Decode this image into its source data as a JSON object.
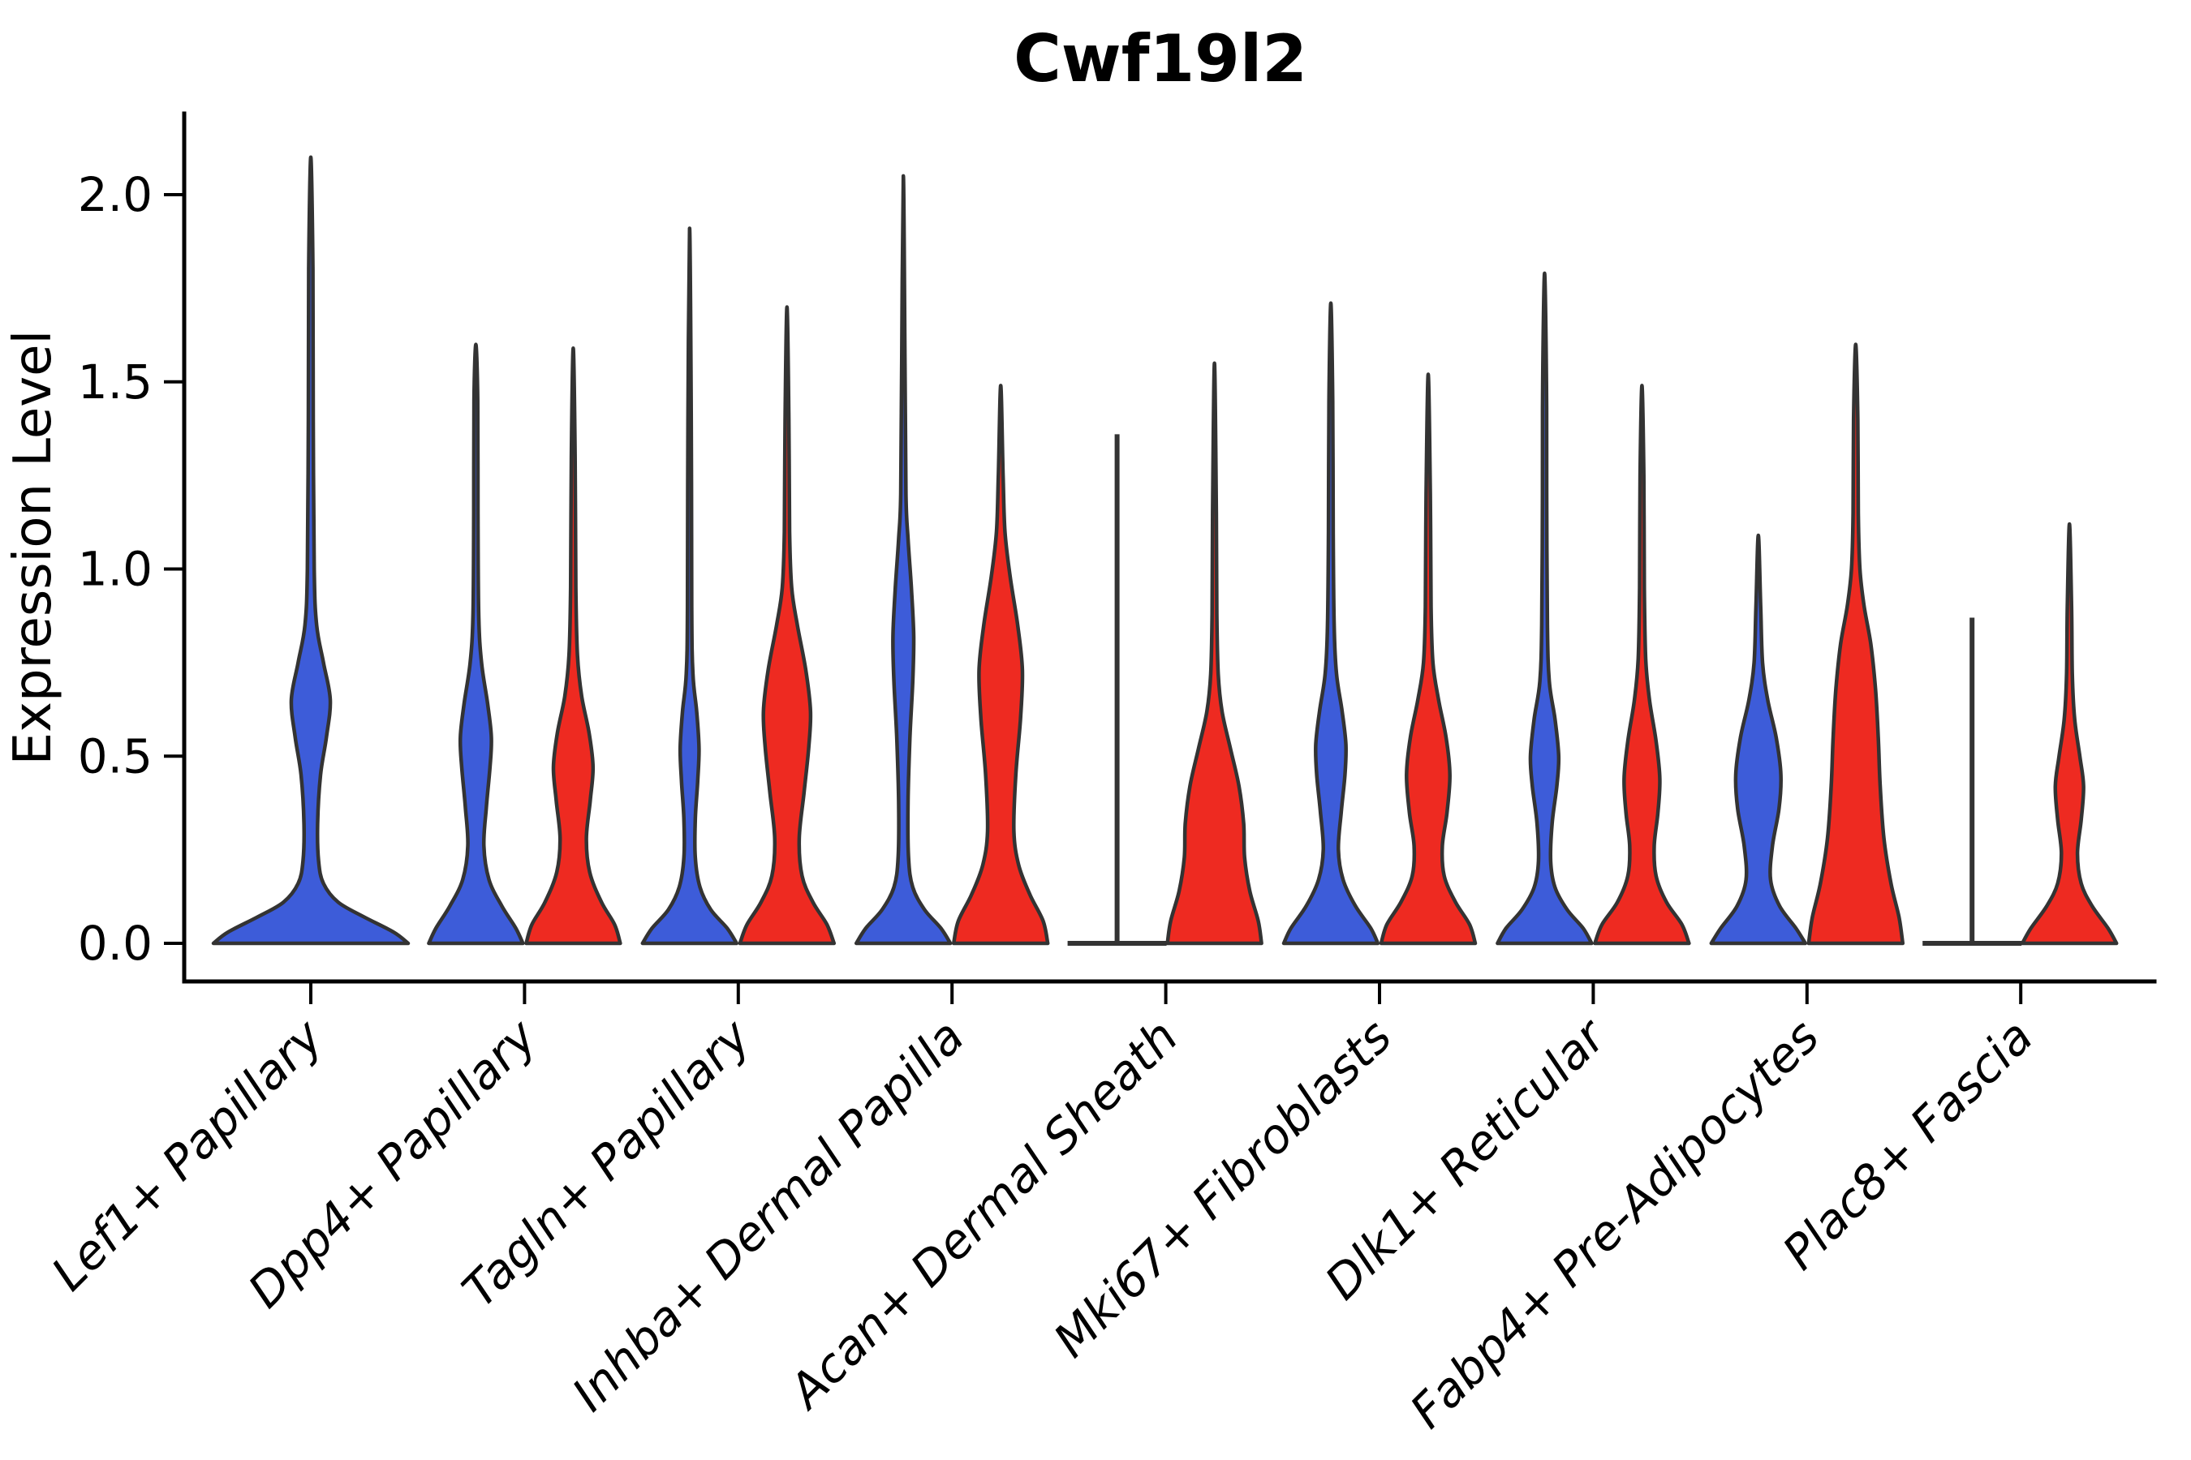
{
  "title": "Cwf19l2",
  "ylabel": "Expression Level",
  "chart_data": {
    "type": "violin",
    "title": "Cwf19l2",
    "xlabel": "",
    "ylabel": "Expression Level",
    "ylim": [
      0,
      2.2
    ],
    "yticks": [
      0.0,
      0.5,
      1.0,
      1.5,
      2.0
    ],
    "ytick_labels": [
      "0.0",
      "0.5",
      "1.0",
      "1.5",
      "2.0"
    ],
    "grid": false,
    "legend_position": "none",
    "colors": {
      "blue": "#3D5CD9",
      "red": "#EE2A21",
      "outline": "#333333"
    },
    "categories": [
      "Lef1+ Papillary",
      "Dpp4+ Papillary",
      "Tagln+ Papillary",
      "Inhba+ Dermal Papilla",
      "Acan+ Dermal Sheath",
      "Mki67+ Fibroblasts",
      "Dlk1+ Reticular",
      "Fabp4+ Pre-Adipocytes",
      "Plac8+ Fascia"
    ],
    "violins": [
      {
        "category_index": 0,
        "group": "blue",
        "span": "full",
        "style": "kde",
        "max": 2.1,
        "profile": [
          [
            0,
            1
          ],
          [
            0.03,
            0.85
          ],
          [
            0.07,
            0.55
          ],
          [
            0.11,
            0.28
          ],
          [
            0.16,
            0.13
          ],
          [
            0.22,
            0.08
          ],
          [
            0.32,
            0.07
          ],
          [
            0.45,
            0.1
          ],
          [
            0.55,
            0.16
          ],
          [
            0.65,
            0.2
          ],
          [
            0.75,
            0.13
          ],
          [
            0.85,
            0.06
          ],
          [
            1.0,
            0.035
          ],
          [
            1.4,
            0.025
          ],
          [
            1.8,
            0.022
          ],
          [
            2.1,
            0
          ]
        ]
      },
      {
        "category_index": 1,
        "group": "blue",
        "span": "half",
        "style": "kde",
        "max": 1.6,
        "profile": [
          [
            0,
            1
          ],
          [
            0.04,
            0.85
          ],
          [
            0.1,
            0.55
          ],
          [
            0.17,
            0.28
          ],
          [
            0.26,
            0.17
          ],
          [
            0.36,
            0.22
          ],
          [
            0.47,
            0.3
          ],
          [
            0.55,
            0.33
          ],
          [
            0.64,
            0.25
          ],
          [
            0.75,
            0.12
          ],
          [
            0.88,
            0.06
          ],
          [
            1.15,
            0.045
          ],
          [
            1.45,
            0.04
          ],
          [
            1.6,
            0
          ]
        ]
      },
      {
        "category_index": 1,
        "group": "red",
        "span": "half",
        "style": "kde",
        "max": 1.59,
        "profile": [
          [
            0,
            1
          ],
          [
            0.05,
            0.88
          ],
          [
            0.11,
            0.6
          ],
          [
            0.19,
            0.35
          ],
          [
            0.28,
            0.28
          ],
          [
            0.38,
            0.36
          ],
          [
            0.47,
            0.42
          ],
          [
            0.56,
            0.34
          ],
          [
            0.66,
            0.18
          ],
          [
            0.77,
            0.09
          ],
          [
            0.95,
            0.055
          ],
          [
            1.3,
            0.04
          ],
          [
            1.59,
            0
          ]
        ]
      },
      {
        "category_index": 2,
        "group": "blue",
        "span": "half",
        "style": "kde",
        "max": 1.91,
        "profile": [
          [
            0,
            1
          ],
          [
            0.04,
            0.8
          ],
          [
            0.09,
            0.45
          ],
          [
            0.15,
            0.22
          ],
          [
            0.23,
            0.12
          ],
          [
            0.33,
            0.12
          ],
          [
            0.43,
            0.17
          ],
          [
            0.52,
            0.2
          ],
          [
            0.62,
            0.15
          ],
          [
            0.72,
            0.07
          ],
          [
            0.9,
            0.045
          ],
          [
            1.4,
            0.035
          ],
          [
            1.91,
            0
          ]
        ]
      },
      {
        "category_index": 2,
        "group": "red",
        "span": "half",
        "style": "kde",
        "max": 1.7,
        "profile": [
          [
            0,
            1
          ],
          [
            0.05,
            0.85
          ],
          [
            0.11,
            0.55
          ],
          [
            0.18,
            0.32
          ],
          [
            0.28,
            0.26
          ],
          [
            0.4,
            0.36
          ],
          [
            0.52,
            0.46
          ],
          [
            0.62,
            0.5
          ],
          [
            0.73,
            0.4
          ],
          [
            0.85,
            0.22
          ],
          [
            0.95,
            0.1
          ],
          [
            1.1,
            0.055
          ],
          [
            1.4,
            0.04
          ],
          [
            1.7,
            0
          ]
        ]
      },
      {
        "category_index": 3,
        "group": "blue",
        "span": "half",
        "style": "kde",
        "max": 2.05,
        "profile": [
          [
            0,
            1
          ],
          [
            0.04,
            0.8
          ],
          [
            0.09,
            0.45
          ],
          [
            0.15,
            0.2
          ],
          [
            0.23,
            0.11
          ],
          [
            0.38,
            0.1
          ],
          [
            0.55,
            0.14
          ],
          [
            0.7,
            0.2
          ],
          [
            0.82,
            0.22
          ],
          [
            0.95,
            0.17
          ],
          [
            1.08,
            0.1
          ],
          [
            1.2,
            0.055
          ],
          [
            1.55,
            0.035
          ],
          [
            2.05,
            0
          ]
        ]
      },
      {
        "category_index": 3,
        "group": "red",
        "span": "half",
        "style": "kde",
        "max": 1.49,
        "profile": [
          [
            0,
            1
          ],
          [
            0.06,
            0.9
          ],
          [
            0.13,
            0.62
          ],
          [
            0.21,
            0.38
          ],
          [
            0.3,
            0.28
          ],
          [
            0.45,
            0.32
          ],
          [
            0.6,
            0.42
          ],
          [
            0.73,
            0.46
          ],
          [
            0.85,
            0.36
          ],
          [
            0.98,
            0.2
          ],
          [
            1.1,
            0.09
          ],
          [
            1.25,
            0.05
          ],
          [
            1.49,
            0
          ]
        ]
      },
      {
        "category_index": 4,
        "group": "blue",
        "span": "half",
        "style": "line",
        "max": 1.36,
        "profile": []
      },
      {
        "category_index": 4,
        "group": "red",
        "span": "half",
        "style": "kde",
        "max": 1.55,
        "profile": [
          [
            0,
            1
          ],
          [
            0.06,
            0.93
          ],
          [
            0.14,
            0.75
          ],
          [
            0.23,
            0.64
          ],
          [
            0.32,
            0.62
          ],
          [
            0.42,
            0.52
          ],
          [
            0.52,
            0.34
          ],
          [
            0.62,
            0.16
          ],
          [
            0.72,
            0.08
          ],
          [
            0.88,
            0.05
          ],
          [
            1.15,
            0.04
          ],
          [
            1.55,
            0
          ]
        ]
      },
      {
        "category_index": 5,
        "group": "blue",
        "span": "half",
        "style": "kde",
        "max": 1.71,
        "profile": [
          [
            0,
            1
          ],
          [
            0.04,
            0.85
          ],
          [
            0.1,
            0.52
          ],
          [
            0.17,
            0.26
          ],
          [
            0.25,
            0.16
          ],
          [
            0.35,
            0.22
          ],
          [
            0.45,
            0.3
          ],
          [
            0.53,
            0.32
          ],
          [
            0.62,
            0.24
          ],
          [
            0.72,
            0.12
          ],
          [
            0.85,
            0.07
          ],
          [
            1.1,
            0.05
          ],
          [
            1.45,
            0.04
          ],
          [
            1.71,
            0
          ]
        ]
      },
      {
        "category_index": 5,
        "group": "red",
        "span": "half",
        "style": "kde",
        "max": 1.52,
        "profile": [
          [
            0,
            1
          ],
          [
            0.05,
            0.88
          ],
          [
            0.11,
            0.58
          ],
          [
            0.18,
            0.34
          ],
          [
            0.26,
            0.3
          ],
          [
            0.35,
            0.4
          ],
          [
            0.45,
            0.46
          ],
          [
            0.55,
            0.38
          ],
          [
            0.65,
            0.22
          ],
          [
            0.75,
            0.1
          ],
          [
            0.9,
            0.06
          ],
          [
            1.2,
            0.045
          ],
          [
            1.52,
            0
          ]
        ]
      },
      {
        "category_index": 6,
        "group": "blue",
        "span": "half",
        "style": "kde",
        "max": 1.79,
        "profile": [
          [
            0,
            1
          ],
          [
            0.04,
            0.82
          ],
          [
            0.09,
            0.48
          ],
          [
            0.15,
            0.22
          ],
          [
            0.22,
            0.13
          ],
          [
            0.32,
            0.16
          ],
          [
            0.42,
            0.26
          ],
          [
            0.5,
            0.3
          ],
          [
            0.6,
            0.22
          ],
          [
            0.7,
            0.1
          ],
          [
            0.85,
            0.06
          ],
          [
            1.2,
            0.045
          ],
          [
            1.5,
            0.04
          ],
          [
            1.79,
            0
          ]
        ]
      },
      {
        "category_index": 6,
        "group": "red",
        "span": "half",
        "style": "kde",
        "max": 1.49,
        "profile": [
          [
            0,
            1
          ],
          [
            0.05,
            0.85
          ],
          [
            0.11,
            0.52
          ],
          [
            0.18,
            0.3
          ],
          [
            0.26,
            0.26
          ],
          [
            0.35,
            0.34
          ],
          [
            0.44,
            0.38
          ],
          [
            0.54,
            0.3
          ],
          [
            0.65,
            0.16
          ],
          [
            0.76,
            0.08
          ],
          [
            0.95,
            0.05
          ],
          [
            1.25,
            0.04
          ],
          [
            1.49,
            0
          ]
        ]
      },
      {
        "category_index": 7,
        "group": "blue",
        "span": "half",
        "style": "kde",
        "max": 1.09,
        "profile": [
          [
            0,
            1
          ],
          [
            0.04,
            0.8
          ],
          [
            0.1,
            0.45
          ],
          [
            0.17,
            0.26
          ],
          [
            0.26,
            0.3
          ],
          [
            0.36,
            0.44
          ],
          [
            0.45,
            0.48
          ],
          [
            0.55,
            0.38
          ],
          [
            0.65,
            0.2
          ],
          [
            0.75,
            0.09
          ],
          [
            0.9,
            0.05
          ],
          [
            1.09,
            0
          ]
        ]
      },
      {
        "category_index": 7,
        "group": "red",
        "span": "half",
        "style": "kde",
        "max": 1.6,
        "profile": [
          [
            0,
            1
          ],
          [
            0.07,
            0.92
          ],
          [
            0.16,
            0.75
          ],
          [
            0.28,
            0.6
          ],
          [
            0.42,
            0.52
          ],
          [
            0.55,
            0.48
          ],
          [
            0.68,
            0.42
          ],
          [
            0.8,
            0.32
          ],
          [
            0.9,
            0.18
          ],
          [
            1.0,
            0.09
          ],
          [
            1.15,
            0.055
          ],
          [
            1.4,
            0.045
          ],
          [
            1.6,
            0
          ]
        ]
      },
      {
        "category_index": 8,
        "group": "blue",
        "span": "half",
        "style": "line",
        "max": 0.87,
        "profile": []
      },
      {
        "category_index": 8,
        "group": "red",
        "span": "half",
        "style": "kde",
        "max": 1.12,
        "profile": [
          [
            0,
            1
          ],
          [
            0.04,
            0.82
          ],
          [
            0.1,
            0.48
          ],
          [
            0.16,
            0.25
          ],
          [
            0.24,
            0.17
          ],
          [
            0.33,
            0.25
          ],
          [
            0.42,
            0.3
          ],
          [
            0.5,
            0.22
          ],
          [
            0.6,
            0.11
          ],
          [
            0.72,
            0.06
          ],
          [
            0.9,
            0.045
          ],
          [
            1.12,
            0
          ]
        ]
      }
    ]
  }
}
